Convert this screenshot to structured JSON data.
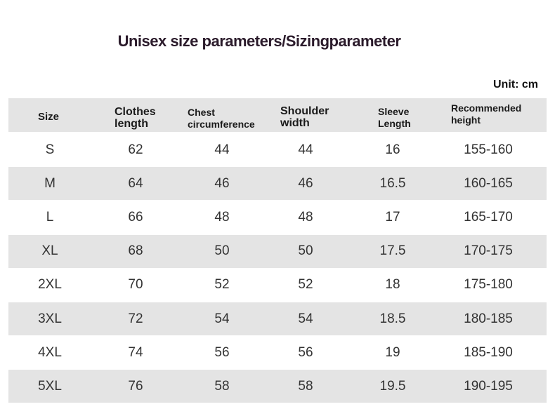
{
  "title": "Unisex size parameters/Sizingparameter",
  "unit": "Unit: cm",
  "headers": [
    "Size",
    "Clothes\nlength",
    "Chest\ncircumference",
    "Shoulder\nwidth",
    "Sleeve\nLength",
    "Recommended\nheight"
  ],
  "rows": [
    [
      "S",
      "62",
      "44",
      "44",
      "16",
      "155-160"
    ],
    [
      "M",
      "64",
      "46",
      "46",
      "16.5",
      "160-165"
    ],
    [
      "L",
      "66",
      "48",
      "48",
      "17",
      "165-170"
    ],
    [
      "XL",
      "68",
      "50",
      "50",
      "17.5",
      "170-175"
    ],
    [
      "2XL",
      "70",
      "52",
      "52",
      "18",
      "175-180"
    ],
    [
      "3XL",
      "72",
      "54",
      "54",
      "18.5",
      "180-185"
    ],
    [
      "4XL",
      "74",
      "56",
      "56",
      "19",
      "185-190"
    ],
    [
      "5XL",
      "76",
      "58",
      "58",
      "19.5",
      "190-195"
    ]
  ],
  "colors": {
    "header_bg": "#e4e4e4",
    "stripe_bg": "#e4e4e4",
    "title": "#2b1b2b"
  }
}
